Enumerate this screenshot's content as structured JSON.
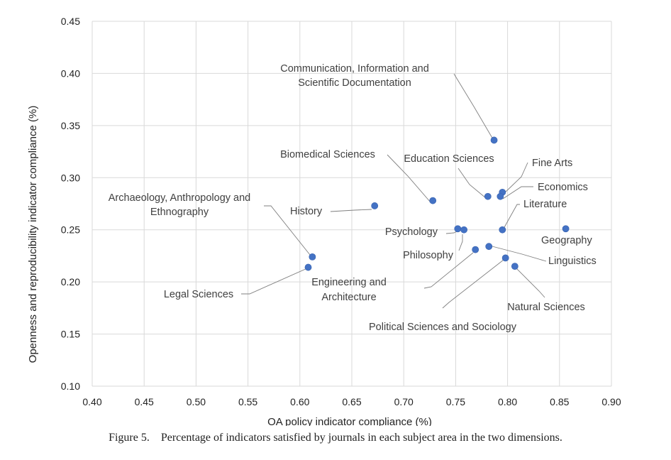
{
  "chart_data": {
    "type": "scatter",
    "xlabel": "OA policy indicator compliance (%)",
    "ylabel": "Openness and reproducibility indicator compliance (%)",
    "xlim": [
      0.4,
      0.9
    ],
    "ylim": [
      0.1,
      0.45
    ],
    "x_ticks": [
      "0.40",
      "0.45",
      "0.50",
      "0.55",
      "0.60",
      "0.65",
      "0.70",
      "0.75",
      "0.80",
      "0.85",
      "0.90"
    ],
    "y_ticks": [
      "0.10",
      "0.15",
      "0.20",
      "0.25",
      "0.30",
      "0.35",
      "0.40",
      "0.45"
    ],
    "grid": true,
    "marker_color": "#4472c4",
    "points": [
      {
        "name": "Communication, Information and Scientific Documentation",
        "lines": [
          "Communication, Information and",
          "Scientific Documentation"
        ],
        "x": 0.787,
        "y": 0.336
      },
      {
        "name": "Biomedical Sciences",
        "lines": [
          "Biomedical Sciences"
        ],
        "x": 0.728,
        "y": 0.278
      },
      {
        "name": "Education Sciences",
        "lines": [
          "Education Sciences"
        ],
        "x": 0.781,
        "y": 0.282
      },
      {
        "name": "Fine Arts",
        "lines": [
          "Fine Arts"
        ],
        "x": 0.795,
        "y": 0.286
      },
      {
        "name": "Economics",
        "lines": [
          "Economics"
        ],
        "x": 0.793,
        "y": 0.282
      },
      {
        "name": "Literature",
        "lines": [
          "Literature"
        ],
        "x": 0.795,
        "y": 0.25
      },
      {
        "name": "History",
        "lines": [
          "History"
        ],
        "x": 0.672,
        "y": 0.273
      },
      {
        "name": "Archaeology, Anthropology and Ethnography",
        "lines": [
          "Archaeology, Anthropology and",
          "Ethnography"
        ],
        "x": 0.612,
        "y": 0.224
      },
      {
        "name": "Psychology",
        "lines": [
          "Psychology"
        ],
        "x": 0.752,
        "y": 0.251
      },
      {
        "name": "Geography",
        "lines": [
          "Geography"
        ],
        "x": 0.856,
        "y": 0.251
      },
      {
        "name": "Philosophy",
        "lines": [
          "Philosophy"
        ],
        "x": 0.758,
        "y": 0.25
      },
      {
        "name": "Linguistics",
        "lines": [
          "Linguistics"
        ],
        "x": 0.782,
        "y": 0.234
      },
      {
        "name": "Legal Sciences",
        "lines": [
          "Legal Sciences"
        ],
        "x": 0.608,
        "y": 0.214
      },
      {
        "name": "Engineering and Architecture",
        "lines": [
          "Engineering and",
          "Architecture"
        ],
        "x": 0.769,
        "y": 0.231
      },
      {
        "name": "Natural Sciences",
        "lines": [
          "Natural Sciences"
        ],
        "x": 0.807,
        "y": 0.215
      },
      {
        "name": "Political Sciences and Sociology",
        "lines": [
          "Political Sciences and Sociology"
        ],
        "x": 0.798,
        "y": 0.223
      }
    ]
  },
  "caption": "Figure 5.    Percentage of indicators satisfied by journals in each subject area in the two dimensions."
}
